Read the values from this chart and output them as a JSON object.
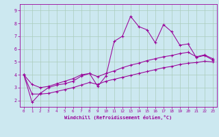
{
  "xlabel": "Windchill (Refroidissement éolien,°C)",
  "bg_color": "#cce8f0",
  "grid_color": "#aaccbb",
  "line_color": "#990099",
  "xlim": [
    -0.5,
    23.5
  ],
  "ylim": [
    1.5,
    9.5
  ],
  "xticks": [
    0,
    1,
    2,
    3,
    4,
    5,
    6,
    7,
    8,
    9,
    10,
    11,
    12,
    13,
    14,
    15,
    16,
    17,
    18,
    19,
    20,
    21,
    22,
    23
  ],
  "yticks": [
    2,
    3,
    4,
    5,
    6,
    7,
    8,
    9
  ],
  "line1_x": [
    0,
    1,
    2,
    3,
    4,
    5,
    6,
    7,
    8,
    9,
    10,
    11,
    12,
    13,
    14,
    15,
    16,
    17,
    18,
    19,
    20,
    21,
    22,
    23
  ],
  "line1_y": [
    4.0,
    1.85,
    2.55,
    3.0,
    3.2,
    3.3,
    3.5,
    3.9,
    4.1,
    3.1,
    3.9,
    6.6,
    7.0,
    8.55,
    7.75,
    7.5,
    6.5,
    7.9,
    7.35,
    6.3,
    6.4,
    5.35,
    5.5,
    5.15
  ],
  "line2_x": [
    0,
    1,
    2,
    3,
    4,
    5,
    6,
    7,
    8,
    9,
    10,
    11,
    12,
    13,
    14,
    15,
    16,
    17,
    18,
    19,
    20,
    21,
    22,
    23
  ],
  "line2_y": [
    4.0,
    3.25,
    3.0,
    3.1,
    3.3,
    3.5,
    3.7,
    4.0,
    4.1,
    3.85,
    4.1,
    4.3,
    4.55,
    4.75,
    4.9,
    5.1,
    5.25,
    5.4,
    5.5,
    5.65,
    5.75,
    5.4,
    5.55,
    5.25
  ],
  "line3_x": [
    0,
    1,
    2,
    3,
    4,
    5,
    6,
    7,
    8,
    9,
    10,
    11,
    12,
    13,
    14,
    15,
    16,
    17,
    18,
    19,
    20,
    21,
    22,
    23
  ],
  "line3_y": [
    4.0,
    2.5,
    2.5,
    2.55,
    2.7,
    2.85,
    3.0,
    3.2,
    3.4,
    3.25,
    3.5,
    3.65,
    3.8,
    3.95,
    4.1,
    4.25,
    4.4,
    4.55,
    4.65,
    4.8,
    4.9,
    4.95,
    5.05,
    5.0
  ]
}
